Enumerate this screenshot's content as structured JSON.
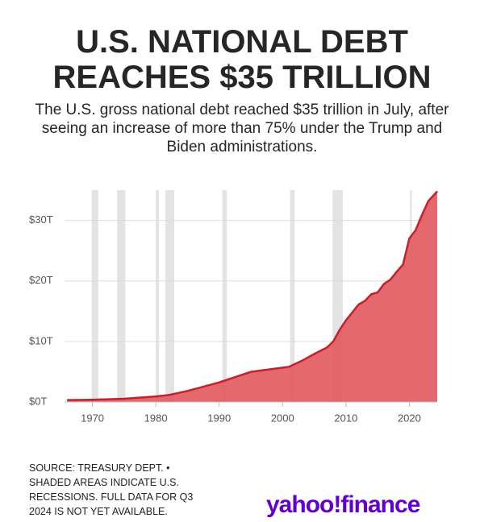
{
  "chart_data": {
    "type": "area",
    "title": "U.S. NATIONAL DEBT REACHES $35 TRILLION",
    "subtitle": "The U.S. gross national debt reached $35 trillion in July, after seeing an increase of more than 75% under the Trump and Biden administrations.",
    "x": [
      1966,
      1970,
      1975,
      1980,
      1982,
      1985,
      1990,
      1995,
      2000,
      2001,
      2003,
      2005,
      2007,
      2008,
      2009,
      2010,
      2011,
      2012,
      2013,
      2014,
      2015,
      2016,
      2017,
      2018,
      2019,
      2020,
      2021,
      2022,
      2023,
      2024.4
    ],
    "values": [
      0.32,
      0.37,
      0.53,
      0.91,
      1.14,
      1.82,
      3.23,
      4.97,
      5.67,
      5.81,
      6.78,
      7.93,
      9.0,
      10.0,
      11.9,
      13.5,
      14.8,
      16.1,
      16.7,
      17.8,
      18.1,
      19.5,
      20.2,
      21.5,
      22.7,
      27.0,
      28.4,
      30.9,
      33.2,
      34.8
    ],
    "color": "#e0595e",
    "line_color": "#c4222b",
    "recessions": [
      [
        1969.9,
        1970.9
      ],
      [
        1973.9,
        1975.2
      ],
      [
        1980.0,
        1980.5
      ],
      [
        1981.5,
        1982.9
      ],
      [
        1990.5,
        1991.2
      ],
      [
        2001.2,
        2001.9
      ],
      [
        2007.9,
        2009.5
      ],
      [
        2020.1,
        2020.4
      ]
    ],
    "xlim": [
      1965.6,
      2024.4
    ],
    "xticks": [
      1970,
      1980,
      1990,
      2000,
      2010,
      2020
    ],
    "ylim": [
      0,
      35
    ],
    "yticks": [
      {
        "value": 0,
        "label": "$0T"
      },
      {
        "value": 10,
        "label": "$10T"
      },
      {
        "value": 20,
        "label": "$20T"
      },
      {
        "value": 30,
        "label": "$30T"
      }
    ],
    "grid": true,
    "note_lines": [
      "SOURCE: TREASURY DEPT. •",
      "SHADED AREAS INDICATE U.S.",
      "RECESSIONS. FULL DATA FOR Q3",
      "2024 IS NOT YET AVAILABLE."
    ],
    "logo": [
      "yahoo!",
      "finance"
    ]
  }
}
